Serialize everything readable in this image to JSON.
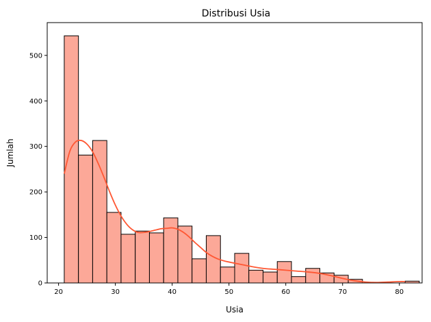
{
  "chart_data": {
    "type": "bar",
    "title": "Distribusi Usia",
    "xlabel": "Usia",
    "ylabel": "Jumlah",
    "xlim": [
      18,
      84
    ],
    "ylim": [
      0,
      572
    ],
    "xticks": [
      20,
      30,
      40,
      50,
      60,
      70,
      80
    ],
    "yticks": [
      0,
      100,
      200,
      300,
      400,
      500
    ],
    "bin_start": 21,
    "bin_width": 2.5,
    "values": [
      543,
      281,
      313,
      155,
      107,
      114,
      110,
      143,
      125,
      53,
      104,
      35,
      65,
      28,
      24,
      47,
      14,
      32,
      22,
      17,
      8,
      0,
      0,
      0,
      4
    ],
    "kde": {
      "x": [
        21,
        22,
        23,
        24,
        25,
        26,
        27,
        28,
        29,
        30,
        31,
        32,
        33,
        34,
        35,
        36,
        37,
        38,
        39,
        40,
        41,
        42,
        43,
        44,
        45,
        46,
        47,
        48,
        49,
        50,
        52,
        54,
        56,
        58,
        60,
        62,
        64,
        66,
        68,
        70,
        72,
        74,
        76,
        78,
        80,
        81
      ],
      "y": [
        240,
        290,
        310,
        313,
        305,
        288,
        262,
        232,
        200,
        171,
        147,
        129,
        117,
        111,
        111,
        113,
        116,
        119,
        120,
        121,
        118,
        111,
        101,
        89,
        78,
        67,
        59,
        53,
        49,
        46,
        41,
        36,
        32,
        30,
        28,
        26,
        24,
        21,
        16,
        10,
        5,
        2,
        1,
        2,
        3,
        3
      ]
    },
    "colors": {
      "bar_fill": "#fca898",
      "bar_edge": "#000000",
      "kde_line": "#ff5733"
    },
    "grid": false,
    "legend": "none"
  }
}
